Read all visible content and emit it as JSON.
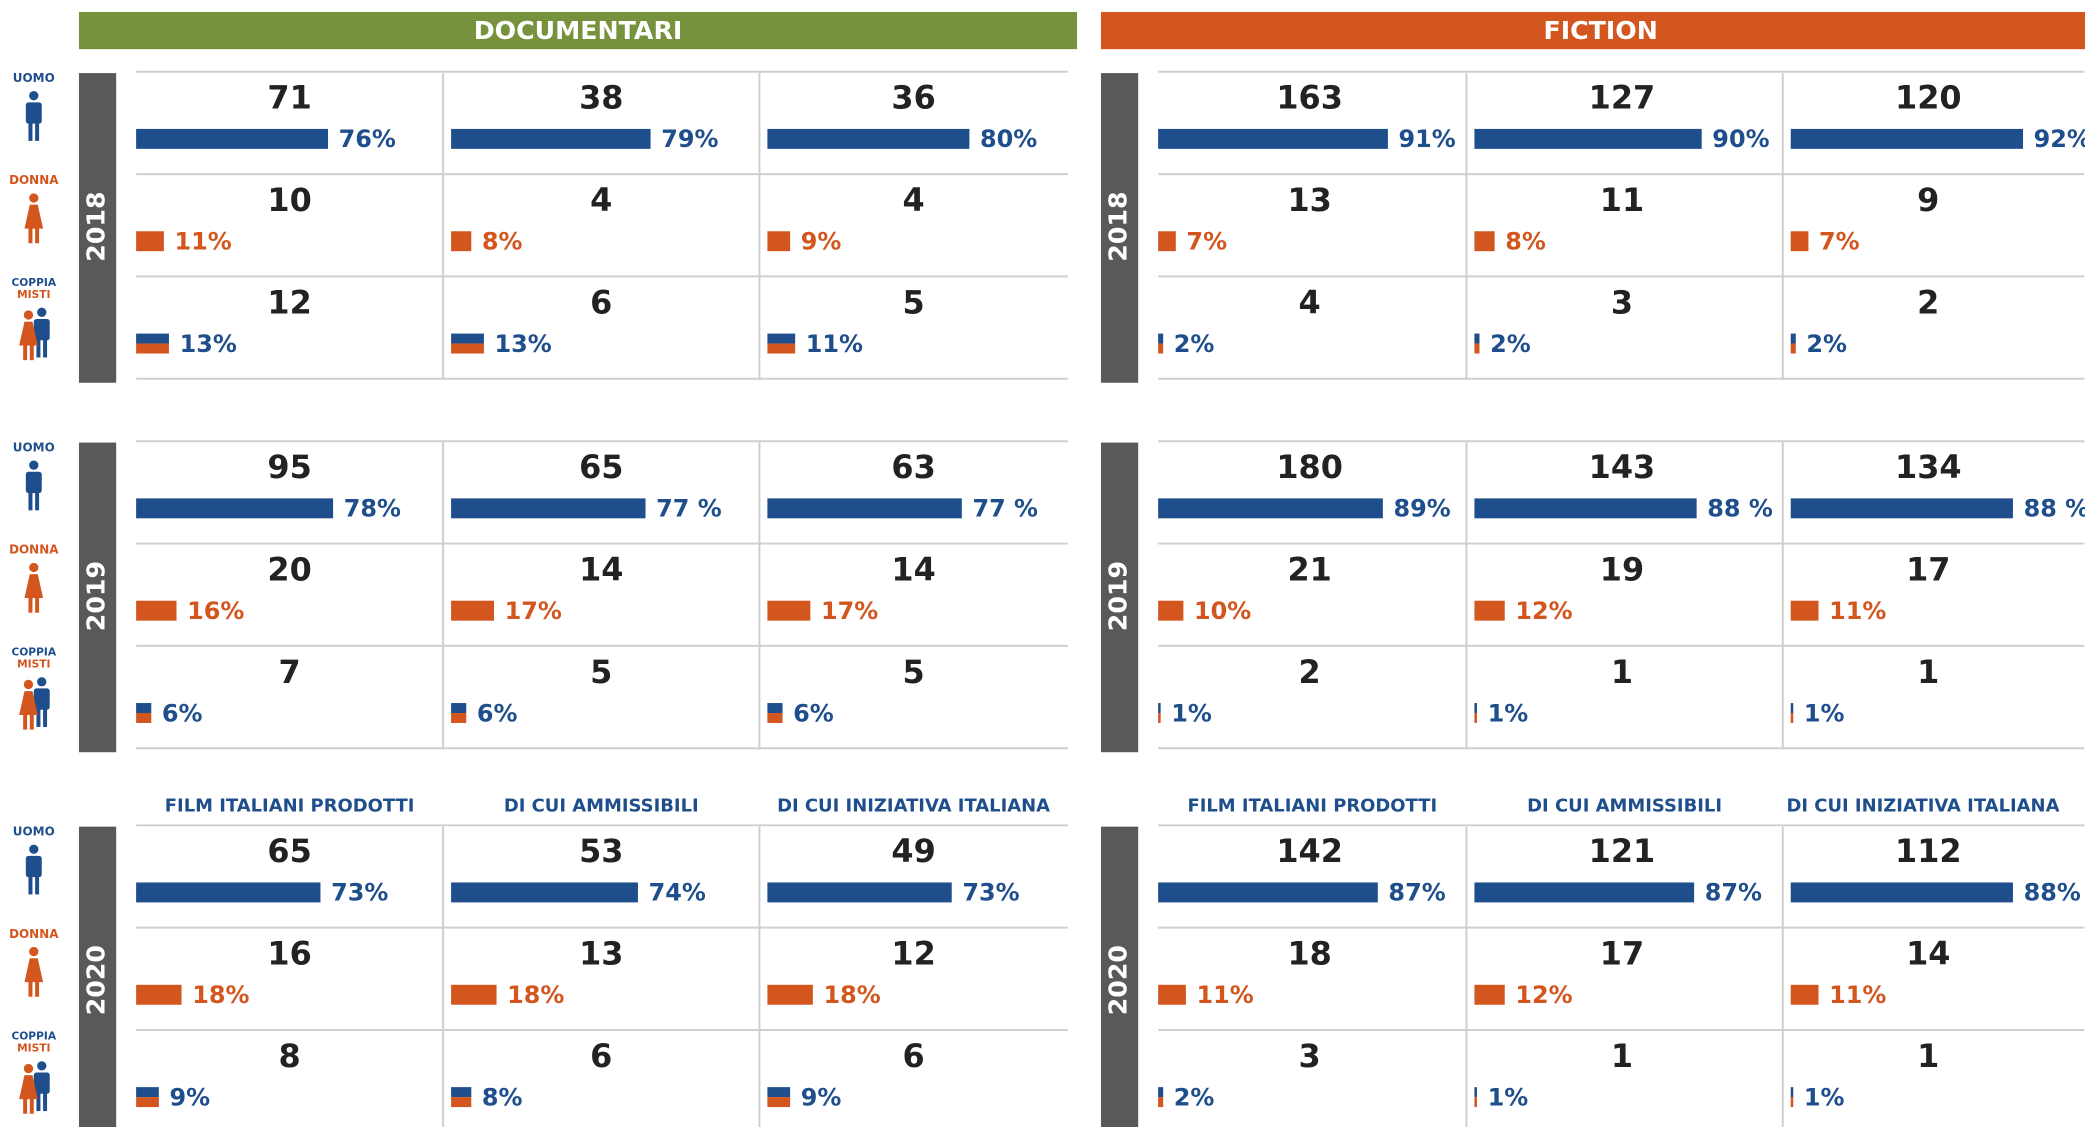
{
  "row_labels": [
    [
      "UOMO"
    ],
    [
      "DONNA"
    ],
    [
      "COPPIA",
      "MISTI"
    ]
  ],
  "colors": {
    "male": "#1f4e8c",
    "female": "#d4561f"
  },
  "sections": [
    {
      "title": "DOCUMENTARI",
      "color": "#76923c",
      "column_headers": [
        "FILM ITALIANI PRODOTTI",
        "DI CUI AMMISSIBILI",
        "DI CUI INIZIATIVA ITALIANA"
      ],
      "years": [
        {
          "year": "2018",
          "rows": [
            [
              {
                "count": 71,
                "pct": 76,
                "pct_label": "76%"
              },
              {
                "count": 38,
                "pct": 79,
                "pct_label": "79%"
              },
              {
                "count": 36,
                "pct": 80,
                "pct_label": "80%"
              }
            ],
            [
              {
                "count": 10,
                "pct": 11,
                "pct_label": "11%"
              },
              {
                "count": 4,
                "pct": 8,
                "pct_label": "8%"
              },
              {
                "count": 4,
                "pct": 9,
                "pct_label": "9%"
              }
            ],
            [
              {
                "count": 12,
                "pct": 13,
                "pct_label": "13%"
              },
              {
                "count": 6,
                "pct": 13,
                "pct_label": "13%"
              },
              {
                "count": 5,
                "pct": 11,
                "pct_label": "11%"
              }
            ]
          ]
        },
        {
          "year": "2019",
          "rows": [
            [
              {
                "count": 95,
                "pct": 78,
                "pct_label": "78%"
              },
              {
                "count": 65,
                "pct": 77,
                "pct_label": "77 %"
              },
              {
                "count": 63,
                "pct": 77,
                "pct_label": "77 %"
              }
            ],
            [
              {
                "count": 20,
                "pct": 16,
                "pct_label": "16%"
              },
              {
                "count": 14,
                "pct": 17,
                "pct_label": "17%"
              },
              {
                "count": 14,
                "pct": 17,
                "pct_label": "17%"
              }
            ],
            [
              {
                "count": 7,
                "pct": 6,
                "pct_label": "6%"
              },
              {
                "count": 5,
                "pct": 6,
                "pct_label": "6%"
              },
              {
                "count": 5,
                "pct": 6,
                "pct_label": "6%"
              }
            ]
          ]
        },
        {
          "year": "2020",
          "rows": [
            [
              {
                "count": 65,
                "pct": 73,
                "pct_label": "73%"
              },
              {
                "count": 53,
                "pct": 74,
                "pct_label": "74%"
              },
              {
                "count": 49,
                "pct": 73,
                "pct_label": "73%"
              }
            ],
            [
              {
                "count": 16,
                "pct": 18,
                "pct_label": "18%"
              },
              {
                "count": 13,
                "pct": 18,
                "pct_label": "18%"
              },
              {
                "count": 12,
                "pct": 18,
                "pct_label": "18%"
              }
            ],
            [
              {
                "count": 8,
                "pct": 9,
                "pct_label": "9%"
              },
              {
                "count": 6,
                "pct": 8,
                "pct_label": "8%"
              },
              {
                "count": 6,
                "pct": 9,
                "pct_label": "9%"
              }
            ]
          ]
        }
      ]
    },
    {
      "title": "FICTION",
      "color": "#d4561f",
      "column_headers": [
        "FILM ITALIANI PRODOTTI",
        "DI CUI AMMISSIBILI",
        "DI CUI INIZIATIVA ITALIANA"
      ],
      "years": [
        {
          "year": "2018",
          "rows": [
            [
              {
                "count": 163,
                "pct": 91,
                "pct_label": "91%"
              },
              {
                "count": 127,
                "pct": 90,
                "pct_label": "90%"
              },
              {
                "count": 120,
                "pct": 92,
                "pct_label": "92%"
              }
            ],
            [
              {
                "count": 13,
                "pct": 7,
                "pct_label": "7%"
              },
              {
                "count": 11,
                "pct": 8,
                "pct_label": "8%"
              },
              {
                "count": 9,
                "pct": 7,
                "pct_label": "7%"
              }
            ],
            [
              {
                "count": 4,
                "pct": 2,
                "pct_label": "2%"
              },
              {
                "count": 3,
                "pct": 2,
                "pct_label": "2%"
              },
              {
                "count": 2,
                "pct": 2,
                "pct_label": "2%"
              }
            ]
          ]
        },
        {
          "year": "2019",
          "rows": [
            [
              {
                "count": 180,
                "pct": 89,
                "pct_label": "89%"
              },
              {
                "count": 143,
                "pct": 88,
                "pct_label": "88 %"
              },
              {
                "count": 134,
                "pct": 88,
                "pct_label": "88 %"
              }
            ],
            [
              {
                "count": 21,
                "pct": 10,
                "pct_label": "10%"
              },
              {
                "count": 19,
                "pct": 12,
                "pct_label": "12%"
              },
              {
                "count": 17,
                "pct": 11,
                "pct_label": "11%"
              }
            ],
            [
              {
                "count": 2,
                "pct": 1,
                "pct_label": "1%"
              },
              {
                "count": 1,
                "pct": 1,
                "pct_label": "1%"
              },
              {
                "count": 1,
                "pct": 1,
                "pct_label": "1%"
              }
            ]
          ]
        },
        {
          "year": "2020",
          "rows": [
            [
              {
                "count": 142,
                "pct": 87,
                "pct_label": "87%"
              },
              {
                "count": 121,
                "pct": 87,
                "pct_label": "87%"
              },
              {
                "count": 112,
                "pct": 88,
                "pct_label": "88%"
              }
            ],
            [
              {
                "count": 18,
                "pct": 11,
                "pct_label": "11%"
              },
              {
                "count": 17,
                "pct": 12,
                "pct_label": "12%"
              },
              {
                "count": 14,
                "pct": 11,
                "pct_label": "11%"
              }
            ],
            [
              {
                "count": 3,
                "pct": 2,
                "pct_label": "2%"
              },
              {
                "count": 1,
                "pct": 1,
                "pct_label": "1%"
              },
              {
                "count": 1,
                "pct": 1,
                "pct_label": "1%"
              }
            ]
          ]
        }
      ]
    }
  ]
}
